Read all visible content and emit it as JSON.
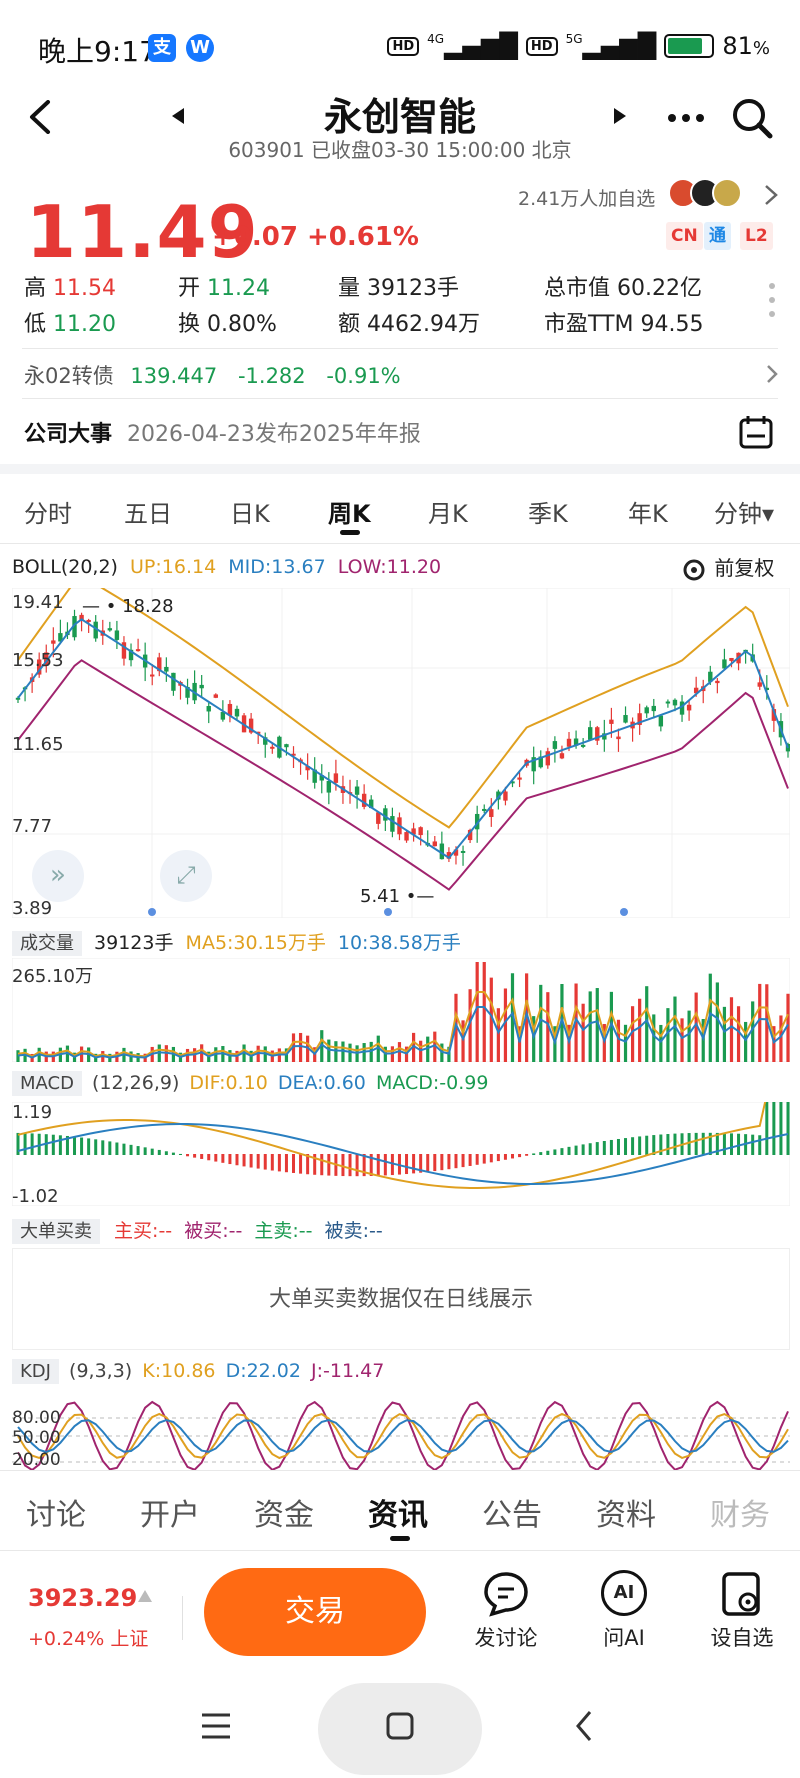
{
  "status": {
    "time": "晚上9:17",
    "badge1": "支",
    "badge2": "W",
    "net1": "4G",
    "net2": "5G",
    "hd": "HD",
    "battery": "81",
    "battery_unit": "%",
    "battery_level": 0.81
  },
  "header": {
    "title": "永创智能",
    "subtitle": "603901 已收盘03-30 15:00:00 北京"
  },
  "quote": {
    "price": "11.49",
    "change": "+0.07 +0.61%",
    "watchers": "2.41万人加自选",
    "tags": [
      "CN",
      "通",
      "L2"
    ],
    "stats": {
      "high_label": "高",
      "high": "11.54",
      "low_label": "低",
      "low": "11.20",
      "open_label": "开",
      "open": "11.24",
      "turnover_label": "换",
      "turnover": "0.80%",
      "volume_label": "量",
      "volume": "39123手",
      "amount_label": "额",
      "amount": "4462.94万",
      "mktcap_label": "总市值",
      "mktcap": "60.22亿",
      "pe_label": "市盈TTM",
      "pe": "94.55"
    },
    "bond": {
      "name": "永02转债",
      "price": "139.447",
      "change": "-1.282",
      "pct": "-0.91%"
    },
    "event": {
      "label": "公司大事",
      "text": "2026-04-23发布2025年年报"
    }
  },
  "ktabs": [
    "分时",
    "五日",
    "日K",
    "周K",
    "月K",
    "季K",
    "年K",
    "分钟▾"
  ],
  "ktab_active": 3,
  "boll": {
    "name": "BOLL(20,2)",
    "up": "UP:16.14",
    "mid": "MID:13.67",
    "low": "LOW:11.20",
    "adjust": "前复权",
    "y_ticks": [
      "19.41",
      "15.53",
      "11.65",
      "7.77",
      "3.89"
    ],
    "high_mark": "18.28",
    "low_mark": "5.41"
  },
  "volume": {
    "label": "成交量",
    "cur": "39123手",
    "ma5": "MA5:30.15万手",
    "ma10": "10:38.58万手",
    "max": "265.10万"
  },
  "macd": {
    "label": "MACD",
    "params": "(12,26,9)",
    "dif": "DIF:0.10",
    "dea": "DEA:0.60",
    "macd": "MACD:-0.99",
    "top": "1.19",
    "bottom": "-1.02"
  },
  "bigorder": {
    "label": "大单买卖",
    "zhumai": "主买:--",
    "beimai": "被买:--",
    "zhumai2": "主卖:--",
    "beimai2": "被卖:--",
    "notice": "大单买卖数据仅在日线展示"
  },
  "kdj": {
    "label": "KDJ",
    "params": "(9,3,3)",
    "k": "K:10.86",
    "d": "D:22.02",
    "j": "J:-11.47",
    "ticks": [
      "80.00",
      "50.00",
      "20.00"
    ]
  },
  "bottom_tabs": [
    "讨论",
    "开户",
    "资金",
    "资讯",
    "公告",
    "资料",
    "财务"
  ],
  "bottom_active": 3,
  "index": {
    "value": "3923.29",
    "change": "+0.24% 上证"
  },
  "actions": {
    "trade": "交易",
    "discuss": "发讨论",
    "ai": "问AI",
    "watch": "设自选",
    "ai_icon": "AI"
  },
  "colors": {
    "up": "#e53935",
    "down": "#1a9a50",
    "boll_up": "#e0a020",
    "boll_mid": "#2a7fc0",
    "boll_low": "#a0246e",
    "accent": "#ff6a13"
  }
}
